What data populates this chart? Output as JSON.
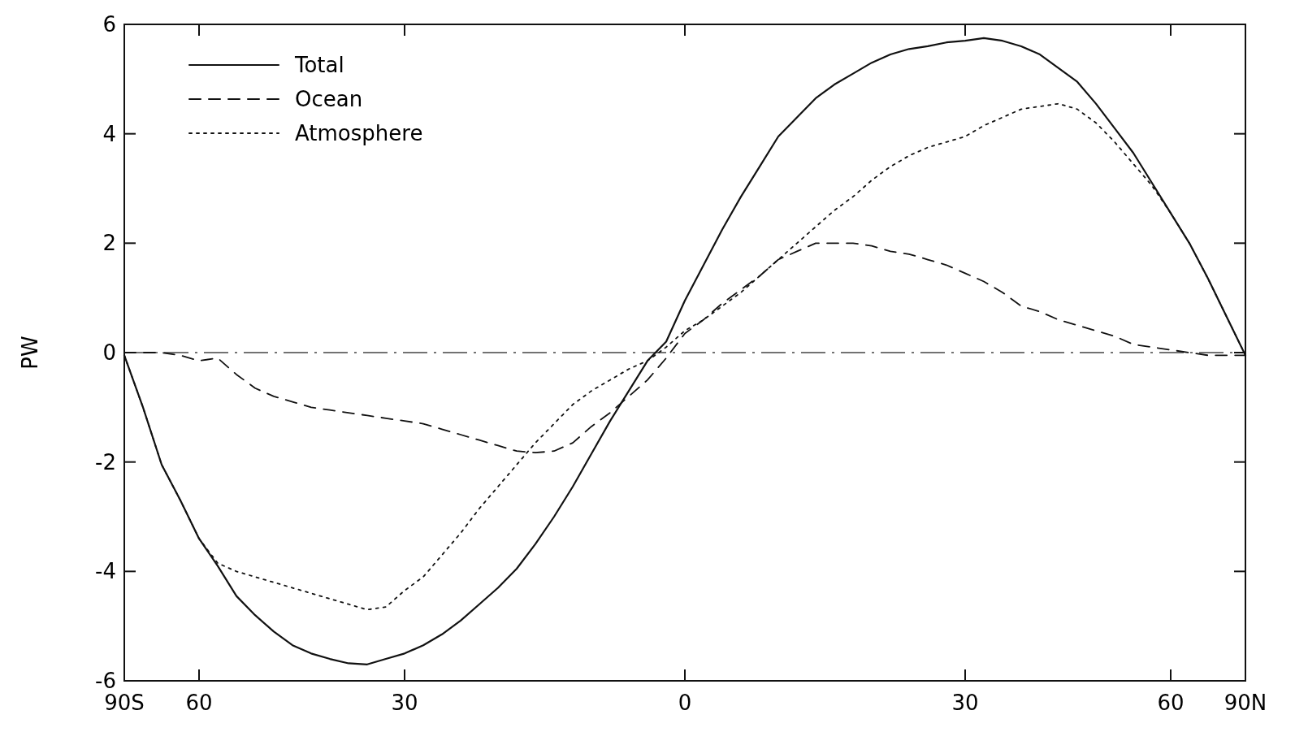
{
  "chart_data": {
    "type": "line",
    "ylabel": "PW",
    "ylim": [
      -6,
      6
    ],
    "categories": [
      "90S",
      null,
      null,
      null,
      "60",
      null,
      null,
      null,
      null,
      null,
      null,
      null,
      null,
      null,
      null,
      "30",
      null,
      null,
      null,
      null,
      null,
      null,
      null,
      null,
      null,
      null,
      null,
      null,
      null,
      null,
      "0",
      null,
      null,
      null,
      null,
      null,
      null,
      null,
      null,
      null,
      null,
      null,
      null,
      null,
      null,
      "30",
      null,
      null,
      null,
      null,
      null,
      null,
      null,
      null,
      null,
      null,
      "60",
      null,
      null,
      null,
      "90N"
    ],
    "yticks": [
      -6,
      -4,
      -2,
      0,
      2,
      4,
      6
    ],
    "grid": false,
    "legend": "top left",
    "ref_lines": [
      {
        "axis": "y",
        "value": 0,
        "line_style": "dashed",
        "color": "#444444"
      }
    ],
    "series": [
      {
        "name": "Total",
        "color": "#111111",
        "line_style": "solid",
        "values": [
          -0.05,
          -1.0,
          -2.05,
          -2.7,
          -3.4,
          -3.9,
          -4.45,
          -4.8,
          -5.1,
          -5.35,
          -5.5,
          -5.6,
          -5.68,
          -5.7,
          -5.6,
          -5.5,
          -5.35,
          -5.15,
          -4.9,
          -4.6,
          -4.3,
          -3.95,
          -3.5,
          -3.0,
          -2.45,
          -1.85,
          -1.25,
          -0.7,
          -0.15,
          0.2,
          0.95,
          1.6,
          2.25,
          2.85,
          3.4,
          3.95,
          4.3,
          4.65,
          4.9,
          5.1,
          5.3,
          5.45,
          5.55,
          5.6,
          5.67,
          5.7,
          5.75,
          5.7,
          5.6,
          5.45,
          5.2,
          4.95,
          4.55,
          4.1,
          3.65,
          3.1,
          2.55,
          2.0,
          1.35,
          0.65,
          -0.05
        ]
      },
      {
        "name": "Ocean",
        "color": "#111111",
        "line_style": "dashed",
        "values": [
          0,
          0,
          0,
          -0.05,
          -0.15,
          -0.1,
          -0.4,
          -0.65,
          -0.8,
          -0.9,
          -1.0,
          -1.05,
          -1.1,
          -1.15,
          -1.2,
          -1.25,
          -1.3,
          -1.4,
          -1.5,
          -1.6,
          -1.7,
          -1.8,
          -1.83,
          -1.8,
          -1.65,
          -1.35,
          -1.1,
          -0.8,
          -0.5,
          -0.1,
          0.35,
          0.6,
          0.9,
          1.15,
          1.4,
          1.7,
          1.85,
          2.0,
          2.0,
          2.0,
          1.95,
          1.85,
          1.8,
          1.7,
          1.6,
          1.45,
          1.3,
          1.1,
          0.85,
          0.75,
          0.6,
          0.5,
          0.4,
          0.3,
          0.15,
          0.1,
          0.05,
          0,
          -0.05,
          -0.05,
          -0.05
        ]
      },
      {
        "name": "Atmosphere",
        "color": "#111111",
        "line_style": "dotted",
        "values": [
          -0.05,
          -1.0,
          -2.05,
          -2.7,
          -3.4,
          -3.85,
          -4.0,
          -4.1,
          -4.2,
          -4.3,
          -4.4,
          -4.5,
          -4.6,
          -4.7,
          -4.65,
          -4.35,
          -4.1,
          -3.7,
          -3.3,
          -2.85,
          -2.45,
          -2.05,
          -1.65,
          -1.3,
          -0.95,
          -0.7,
          -0.5,
          -0.3,
          -0.15,
          0.1,
          0.4,
          0.6,
          0.85,
          1.1,
          1.4,
          1.7,
          2.0,
          2.3,
          2.6,
          2.85,
          3.15,
          3.4,
          3.6,
          3.75,
          3.85,
          3.95,
          4.15,
          4.3,
          4.45,
          4.5,
          4.55,
          4.45,
          4.2,
          3.85,
          3.45,
          3.05,
          2.55,
          2.0,
          1.35,
          0.65,
          -0.05
        ]
      }
    ]
  }
}
